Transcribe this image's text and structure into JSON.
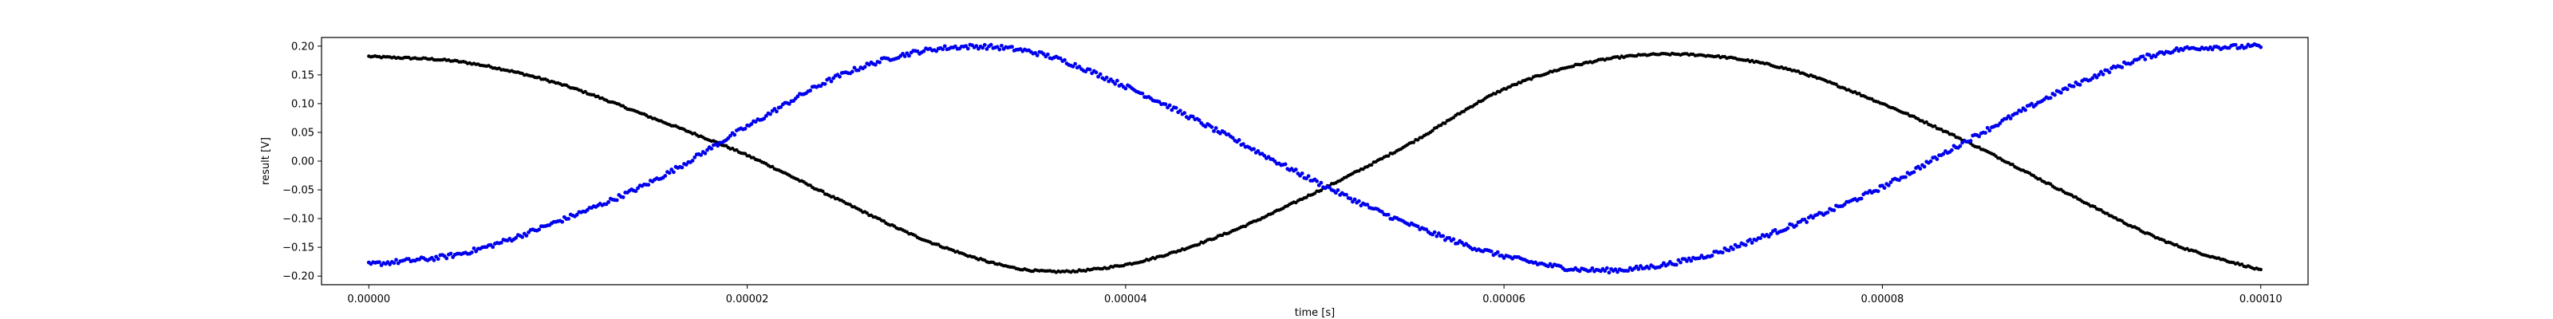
{
  "chart_data": {
    "type": "scatter",
    "xlabel": "time [s]",
    "ylabel": "result [V]",
    "xlim": [
      -2.5e-06,
      0.0001025
    ],
    "ylim": [
      -0.215,
      0.215
    ],
    "x_ticks": [
      0,
      2e-05,
      4e-05,
      6e-05,
      8e-05,
      0.0001
    ],
    "x_tick_labels": [
      "0.00000",
      "0.00002",
      "0.00004",
      "0.00006",
      "0.00008",
      "0.00010"
    ],
    "y_ticks": [
      0.2,
      0.15,
      0.1,
      0.05,
      0.0,
      -0.05,
      -0.1,
      -0.15,
      -0.2
    ],
    "y_tick_labels": [
      "0.20",
      "0.15",
      "0.10",
      "0.05",
      "0.00",
      "−0.05",
      "−0.10",
      "−0.15",
      "−0.20"
    ],
    "grid": false,
    "series": [
      {
        "color": "#000000",
        "marker": "dot",
        "x": [
          0,
          5e-06,
          1e-05,
          1.5e-05,
          2e-05,
          2.5e-05,
          3e-05,
          3.5e-05,
          4e-05,
          4.5e-05,
          5e-05,
          5.5e-05,
          6e-05,
          6.5e-05,
          7e-05,
          7.5e-05,
          8e-05,
          8.5e-05,
          9e-05,
          9.5e-05,
          0.0001
        ],
        "y": [
          0.182,
          0.172,
          0.135,
          0.075,
          0.01,
          -0.07,
          -0.145,
          -0.19,
          -0.18,
          -0.13,
          -0.055,
          0.03,
          0.125,
          0.175,
          0.185,
          0.16,
          0.1,
          0.025,
          -0.06,
          -0.14,
          -0.19
        ]
      },
      {
        "color": "#0000ee",
        "marker": "dot",
        "x": [
          0,
          5e-06,
          1e-05,
          1.5e-05,
          2e-05,
          2.5e-05,
          3e-05,
          3.5e-05,
          4e-05,
          4.5e-05,
          5e-05,
          5.5e-05,
          6e-05,
          6.5e-05,
          7e-05,
          7.5e-05,
          8e-05,
          8.5e-05,
          9e-05,
          9.5e-05,
          0.0001
        ],
        "y": [
          -0.18,
          -0.16,
          -0.105,
          -0.035,
          0.06,
          0.15,
          0.195,
          0.19,
          0.13,
          0.05,
          -0.035,
          -0.11,
          -0.165,
          -0.19,
          -0.17,
          -0.115,
          -0.045,
          0.045,
          0.13,
          0.19,
          0.2
        ]
      }
    ]
  }
}
